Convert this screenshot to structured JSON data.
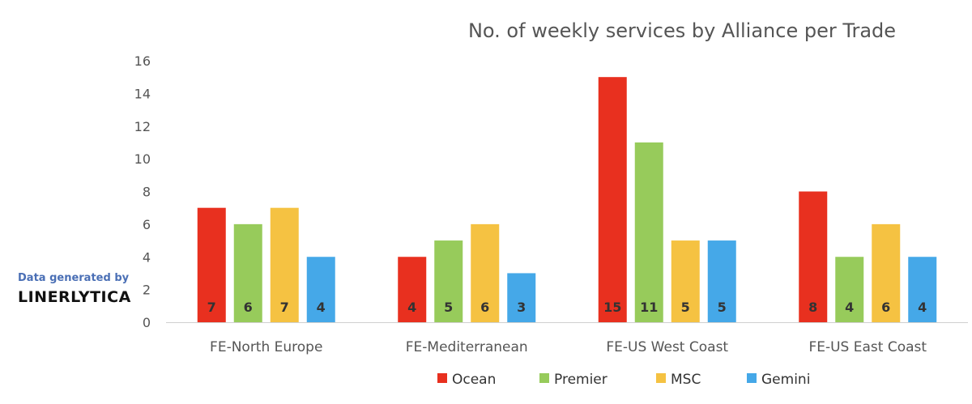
{
  "branding": {
    "top_text": "Data generated by",
    "bottom_text": "LINERLYTICA"
  },
  "chart_data": {
    "type": "bar",
    "title": "No. of weekly services by Alliance per Trade",
    "xlabel": "",
    "ylabel": "",
    "categories": [
      "FE-North Europe",
      "FE-Mediterranean",
      "FE-US West Coast",
      "FE-US East Coast"
    ],
    "series": [
      {
        "name": "Ocean",
        "color": "#e8301f",
        "values": [
          7,
          4,
          15,
          8
        ]
      },
      {
        "name": "Premier",
        "color": "#97cb5b",
        "values": [
          6,
          5,
          11,
          4
        ]
      },
      {
        "name": "MSC",
        "color": "#f5c242",
        "values": [
          7,
          6,
          5,
          6
        ]
      },
      {
        "name": "Gemini",
        "color": "#45a8e8",
        "values": [
          4,
          3,
          5,
          4
        ]
      }
    ],
    "ylim": [
      0,
      16
    ],
    "yticks": [
      0,
      2,
      4,
      6,
      8,
      10,
      12,
      14,
      16
    ],
    "grid": false,
    "legend": "bottom",
    "data_labels": true
  }
}
